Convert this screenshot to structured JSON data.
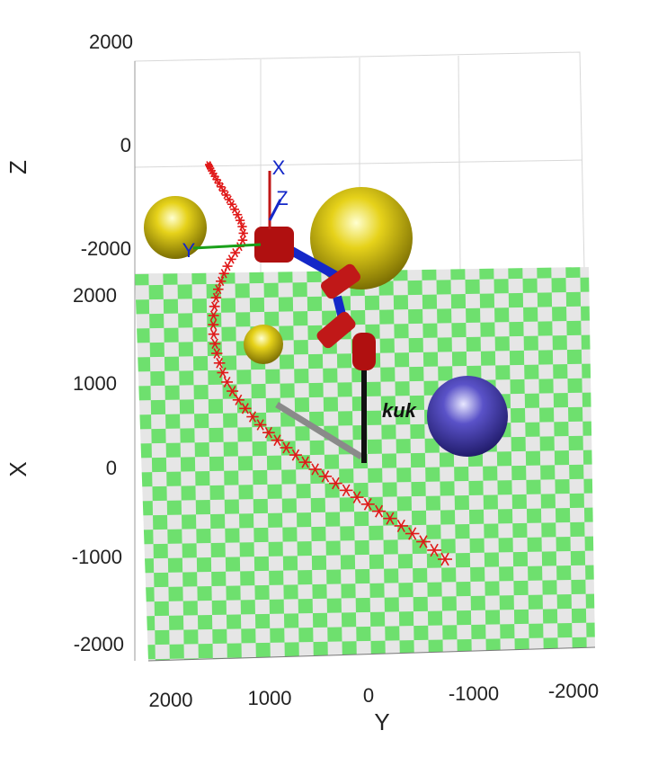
{
  "axes": {
    "z_label": "Z",
    "x_label": "X",
    "y_label": "Y",
    "z_ticks": [
      "2000",
      "0",
      "-2000"
    ],
    "x_ticks": [
      "2000",
      "1000",
      "0",
      "-1000",
      "-2000"
    ],
    "y_ticks": [
      "2000",
      "1000",
      "0",
      "-1000",
      "-2000"
    ]
  },
  "frame_labels": [
    "X",
    "Z",
    "Y"
  ],
  "robot_label": "kuk"
}
